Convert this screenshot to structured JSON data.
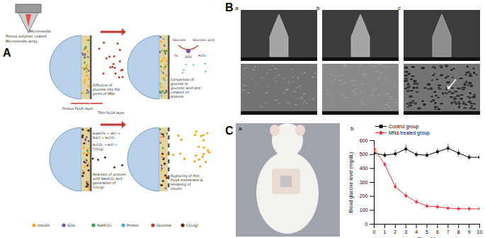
{
  "figure": {
    "A": {
      "label": "A",
      "needle_caption": "Porous polymer coated Microneedle array",
      "microneedle": "Microneedle",
      "porous_layer": "Porous PLGA layer",
      "thin_layer": "Thin PLGA layer",
      "steps": [
        "Diffusion of glucose into the pores of MNs",
        "Conversion of glucose to gluconic acid and creation of protons",
        "Reaction of protons with NaHCO₃ and generation of CO₂(g)",
        "Rupturing of thin PLGA membrane & releasing of insulin"
      ],
      "reaction": {
        "glucose": "Glucose",
        "gluconic_acid": "Gluconic acid",
        "gox": "GOx",
        "o2": "O₂",
        "h2o2": "H₂O₂"
      },
      "equations": [
        "NaHCO₃ + HCl → NaCl + H₂CO₃",
        "H₂CO₃ → H₂O + CO₂(g)"
      ],
      "legend": [
        {
          "name": "Insulin",
          "color": "#f5a623"
        },
        {
          "name": "GOx",
          "color": "#7b4fa0"
        },
        {
          "name": "NaHCO₃",
          "color": "#3a9a4a"
        },
        {
          "name": "Proton",
          "color": "#3ab0d8"
        },
        {
          "name": "Glucose",
          "color": "#c0392b"
        },
        {
          "name": "CO₂(g)",
          "color": "#5a2a1a"
        }
      ]
    },
    "B": {
      "label": "B",
      "sublabels": [
        "a",
        "b",
        "c"
      ]
    },
    "C": {
      "label": "C",
      "sublabels": [
        "a",
        "b"
      ]
    }
  },
  "chart_data": {
    "type": "line",
    "x_label": "Time (h)",
    "y_label": "Blood glucose level (mg/dL)",
    "x": [
      0,
      1,
      2,
      3,
      4,
      5,
      6,
      7,
      8,
      9,
      10
    ],
    "xlim": [
      0,
      10
    ],
    "xticks": [
      0,
      1,
      2,
      3,
      4,
      5,
      6,
      7,
      8,
      9,
      10
    ],
    "ylim": [
      0,
      600
    ],
    "yticks": [
      0,
      100,
      200,
      300,
      400,
      500,
      600
    ],
    "legend": "top",
    "series": [
      {
        "name": "Control group",
        "color": "#000000",
        "marker": "square",
        "line_style": "solid",
        "values": [
          510,
          495,
          505,
          540,
          500,
          495,
          520,
          545,
          510,
          480,
          480
        ],
        "errors": [
          25,
          20,
          25,
          30,
          20,
          20,
          25,
          30,
          25,
          20,
          20
        ]
      },
      {
        "name": "MNs treated group",
        "color": "#e8363a",
        "marker": "circle",
        "line_style": "solid",
        "values": [
          540,
          430,
          270,
          205,
          160,
          130,
          125,
          115,
          110,
          110,
          110
        ],
        "errors": [
          25,
          20,
          25,
          25,
          20,
          20,
          20,
          15,
          15,
          15,
          15
        ]
      }
    ]
  }
}
